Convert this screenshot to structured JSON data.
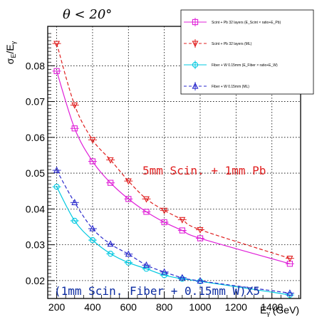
{
  "chart_data": {
    "type": "scatter",
    "title": "θ < 20°",
    "xlabel": "E_γ (GeV)",
    "ylabel": "σ_E/E_γ",
    "xlim": [
      150,
      1560
    ],
    "ylim": [
      0.015,
      0.091
    ],
    "xticks": [
      200,
      400,
      600,
      800,
      1000,
      1200,
      1400
    ],
    "yticks": [
      0.02,
      0.03,
      0.04,
      0.05,
      0.06,
      0.07,
      0.08
    ],
    "grid": true,
    "legend_position": "top-right",
    "series": [
      {
        "name": "Scint + Pb 32 layers (E_Scint × ratio+E_Pb)",
        "color": "#e020d8",
        "marker": "square",
        "line": "solid",
        "x": [
          200,
          300,
          400,
          500,
          600,
          700,
          800,
          900,
          1000,
          1500
        ],
        "y": [
          0.0785,
          0.0625,
          0.0533,
          0.0473,
          0.0428,
          0.0392,
          0.0363,
          0.034,
          0.0318,
          0.0247
        ]
      },
      {
        "name": "Scint + Pb 32 layers (ML)",
        "color": "#e02020",
        "marker": "triangle-down",
        "line": "dashed",
        "x": [
          200,
          300,
          400,
          500,
          600,
          700,
          800,
          900,
          1000,
          1500
        ],
        "y": [
          0.0862,
          0.069,
          0.0593,
          0.0537,
          0.0478,
          0.0428,
          0.0396,
          0.037,
          0.0342,
          0.0262
        ]
      },
      {
        "name": "Fiber + W 0.15mm (E_Fiber × ratio+E_W)",
        "color": "#00c8e0",
        "marker": "circle",
        "line": "solid",
        "x": [
          200,
          300,
          400,
          500,
          600,
          700,
          800,
          900,
          1000,
          1500
        ],
        "y": [
          0.0462,
          0.0367,
          0.0313,
          0.0275,
          0.025,
          0.0233,
          0.0215,
          0.0205,
          0.0198,
          0.016
        ]
      },
      {
        "name": "Fiber + W 0.15mm (ML)",
        "color": "#2a2acc",
        "marker": "triangle-up",
        "line": "dashed",
        "x": [
          200,
          300,
          400,
          500,
          600,
          700,
          800,
          900,
          1000,
          1500
        ],
        "y": [
          0.0508,
          0.0418,
          0.0345,
          0.0302,
          0.0274,
          0.0243,
          0.0224,
          0.0208,
          0.0199,
          0.0165
        ]
      }
    ],
    "annotations": [
      {
        "text": "5mm Scin. + 1mm Pb",
        "color": "#e02020"
      },
      {
        "text": "(1mm Scin. Fiber + 0.15mm W)X5",
        "color": "#0a2aa0"
      }
    ]
  }
}
